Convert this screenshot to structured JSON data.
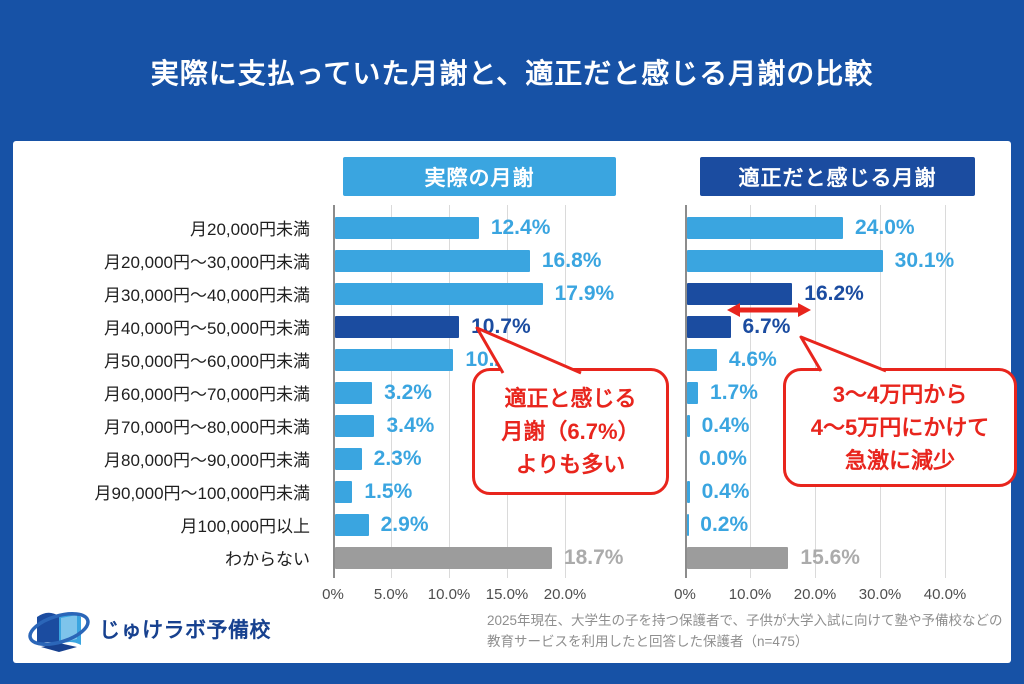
{
  "header": {
    "title": "実際に支払っていた月謝と、適正だと感じる月謝の比較"
  },
  "chart_data": {
    "type": "bar",
    "orientation": "horizontal",
    "categories": [
      "月20,000円未満",
      "月20,000円〜30,000円未満",
      "月30,000円〜40,000円未満",
      "月40,000円〜50,000円未満",
      "月50,000円〜60,000円未満",
      "月60,000円〜70,000円未満",
      "月70,000円〜80,000円未満",
      "月80,000円〜90,000円未満",
      "月90,000円〜100,000円未満",
      "月100,000円以上",
      "わからない"
    ],
    "series": [
      {
        "name": "実際の月謝",
        "values": [
          12.4,
          16.8,
          17.9,
          10.7,
          10.2,
          3.2,
          3.4,
          2.3,
          1.5,
          2.9,
          18.7
        ],
        "value_labels": [
          "12.4%",
          "16.8%",
          "17.9%",
          "10.7%",
          "10.2%",
          "3.2%",
          "3.4%",
          "2.3%",
          "1.5%",
          "2.9%",
          "18.7%"
        ],
        "bar_styles": [
          "light",
          "light",
          "light",
          "dark",
          "light",
          "light",
          "light",
          "light",
          "light",
          "light",
          "gray"
        ],
        "xlim": [
          0,
          20
        ],
        "axis_ticks": [
          {
            "label": "0%",
            "value": 0
          },
          {
            "label": "5.0%",
            "value": 5
          },
          {
            "label": "10.0%",
            "value": 10
          },
          {
            "label": "15.0%",
            "value": 15
          },
          {
            "label": "20.0%",
            "value": 20
          }
        ]
      },
      {
        "name": "適正だと感じる月謝",
        "values": [
          24.0,
          30.1,
          16.2,
          6.7,
          4.6,
          1.7,
          0.4,
          0.0,
          0.4,
          0.2,
          15.6
        ],
        "value_labels": [
          "24.0%",
          "30.1%",
          "16.2%",
          "6.7%",
          "4.6%",
          "1.7%",
          "0.4%",
          "0.0%",
          "0.4%",
          "0.2%",
          "15.6%"
        ],
        "bar_styles": [
          "light",
          "light",
          "dark",
          "dark",
          "light",
          "light",
          "light",
          "light",
          "light",
          "light",
          "gray"
        ],
        "xlim": [
          0,
          40
        ],
        "axis_ticks": [
          {
            "label": "0%",
            "value": 0
          },
          {
            "label": "10.0%",
            "value": 10
          },
          {
            "label": "20.0%",
            "value": 20
          },
          {
            "label": "30.0%",
            "value": 30
          },
          {
            "label": "40.0%",
            "value": 40
          }
        ]
      }
    ],
    "grid": true,
    "legend_position": "top"
  },
  "callouts": {
    "left": {
      "lines": [
        "適正と感じる",
        "月謝（6.7%）",
        "よりも多い"
      ]
    },
    "right": {
      "lines": [
        "3〜4万円から",
        "4〜5万円にかけて",
        "急激に減少"
      ]
    }
  },
  "footnote": {
    "line1": "2025年現在、大学生の子を持つ保護者で、子供が大学入試に向けて塾や予備校などの",
    "line2": "教育サービスを利用したと回答した保護者（n=475）"
  },
  "logo": {
    "text": "じゅけラボ予備校"
  },
  "colors": {
    "background": "#1752A6",
    "light_blue": "#3AA5E0",
    "dark_blue": "#1B4CA0",
    "gray_bar": "#9C9C9C",
    "accent_red": "#E8251D",
    "white": "#FFFFFF"
  }
}
